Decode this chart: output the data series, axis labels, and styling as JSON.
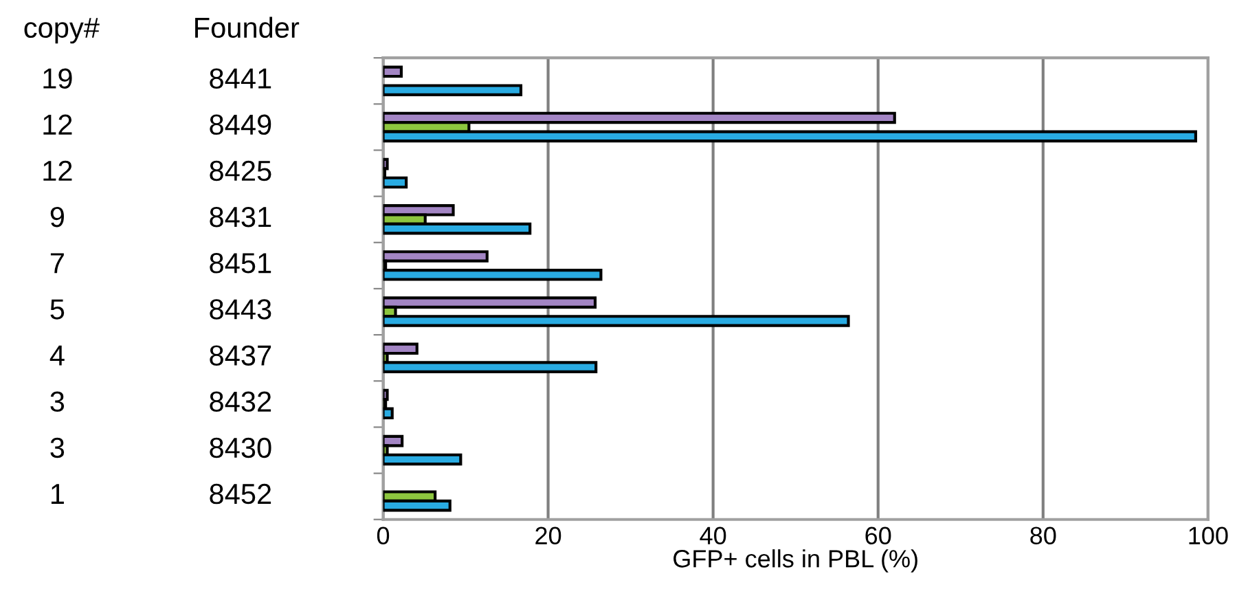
{
  "chart_data": {
    "type": "bar",
    "orientation": "horizontal",
    "xlabel": "GFP+ cells in PBL (%)",
    "ylabel": "Founder",
    "categories": [
      "8441",
      "8449",
      "8425",
      "8431",
      "8451",
      "8443",
      "8437",
      "8432",
      "8430",
      "8452"
    ],
    "series": [
      {
        "color": "#a385c4",
        "values": [
          2.2,
          62,
          0.5,
          8.5,
          12.6,
          25.7,
          4.1,
          0.5,
          2.3,
          null
        ]
      },
      {
        "color": "#8dc63f",
        "values": [
          null,
          10.4,
          0.2,
          5.1,
          0.3,
          1.5,
          0.5,
          0.3,
          0.5,
          6.3
        ]
      },
      {
        "color": "#29abe2",
        "values": [
          16.7,
          98.5,
          2.8,
          17.8,
          26.4,
          56.4,
          25.8,
          1.1,
          9.4,
          8.1
        ]
      }
    ],
    "annotations": [
      "copy#",
      "19",
      "12",
      "12",
      "9",
      "7",
      "5",
      "4",
      "3",
      "3",
      "1"
    ],
    "xlim": [
      0,
      100
    ],
    "xticks": [
      0,
      20,
      40,
      60,
      80,
      100
    ],
    "grid": "x",
    "legend": false
  }
}
